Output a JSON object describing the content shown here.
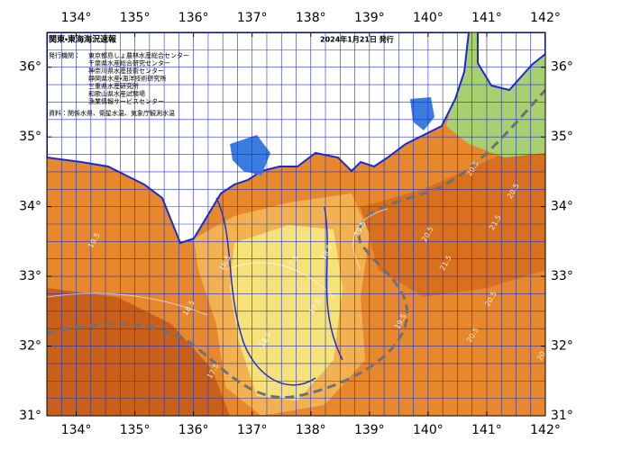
{
  "header": {
    "title": "関東・東海海況速報",
    "date": "2024年1月21日 発行"
  },
  "publishers": {
    "label": "発行機関：",
    "items": [
      "東京都島しょ農林水産総合センター",
      "千葉県水産総合研究センター",
      "神奈川県水産技術センター",
      "静岡県水産・海洋技術研究所",
      "三重県水産研究所",
      "和歌山県水産試験場",
      "漁業情報サービスセンター"
    ]
  },
  "source": "資料：関係水県、衛星水温、気象庁観測水温",
  "axes": {
    "longitudes": [
      {
        "value": 134,
        "label": "134°"
      },
      {
        "value": 135,
        "label": "135°"
      },
      {
        "value": 136,
        "label": "136°"
      },
      {
        "value": 137,
        "label": "137°"
      },
      {
        "value": 138,
        "label": "138°"
      },
      {
        "value": 139,
        "label": "139°"
      },
      {
        "value": 140,
        "label": "140°"
      },
      {
        "value": 141,
        "label": "141°"
      },
      {
        "value": 142,
        "label": "142°"
      }
    ],
    "latitudes": [
      {
        "value": 36,
        "label": "36°"
      },
      {
        "value": 35,
        "label": "35°"
      },
      {
        "value": 34,
        "label": "34°"
      },
      {
        "value": 33,
        "label": "33°"
      },
      {
        "value": 32,
        "label": "32°"
      },
      {
        "value": 31,
        "label": "31°"
      }
    ]
  },
  "contour_labels": [
    "19.5",
    "18.5",
    "17.5",
    "16.5",
    "17.5",
    "17.5",
    "18.5",
    "19.5",
    "20.5",
    "21.5",
    "20.5",
    "20.5",
    "20.5",
    "20.5",
    "21.5",
    "20",
    "18.5",
    "19.5"
  ]
}
